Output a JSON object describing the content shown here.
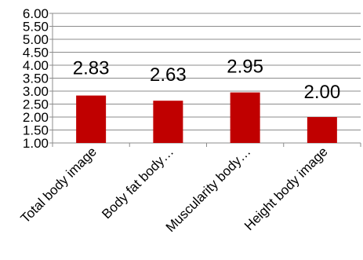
{
  "chart_data": {
    "type": "bar",
    "categories": [
      "Total body image",
      "Body fat body…",
      "Muscularity body…",
      "Height body image"
    ],
    "values": [
      2.83,
      2.63,
      2.95,
      2.0
    ],
    "data_labels": [
      "2.83",
      "2.63",
      "2.95",
      "2.00"
    ],
    "title": "",
    "xlabel": "",
    "ylabel": "",
    "ylim": [
      1.0,
      6.0
    ],
    "yticks": [
      "1.00",
      "1.50",
      "2.00",
      "2.50",
      "3.00",
      "3.50",
      "4.00",
      "4.50",
      "5.00",
      "5.50",
      "6.00"
    ],
    "grid": true,
    "legend": "none",
    "colors": {
      "bar": "#C00000",
      "grid": "#8c8c8c",
      "axis": "#8c8c8c"
    }
  }
}
